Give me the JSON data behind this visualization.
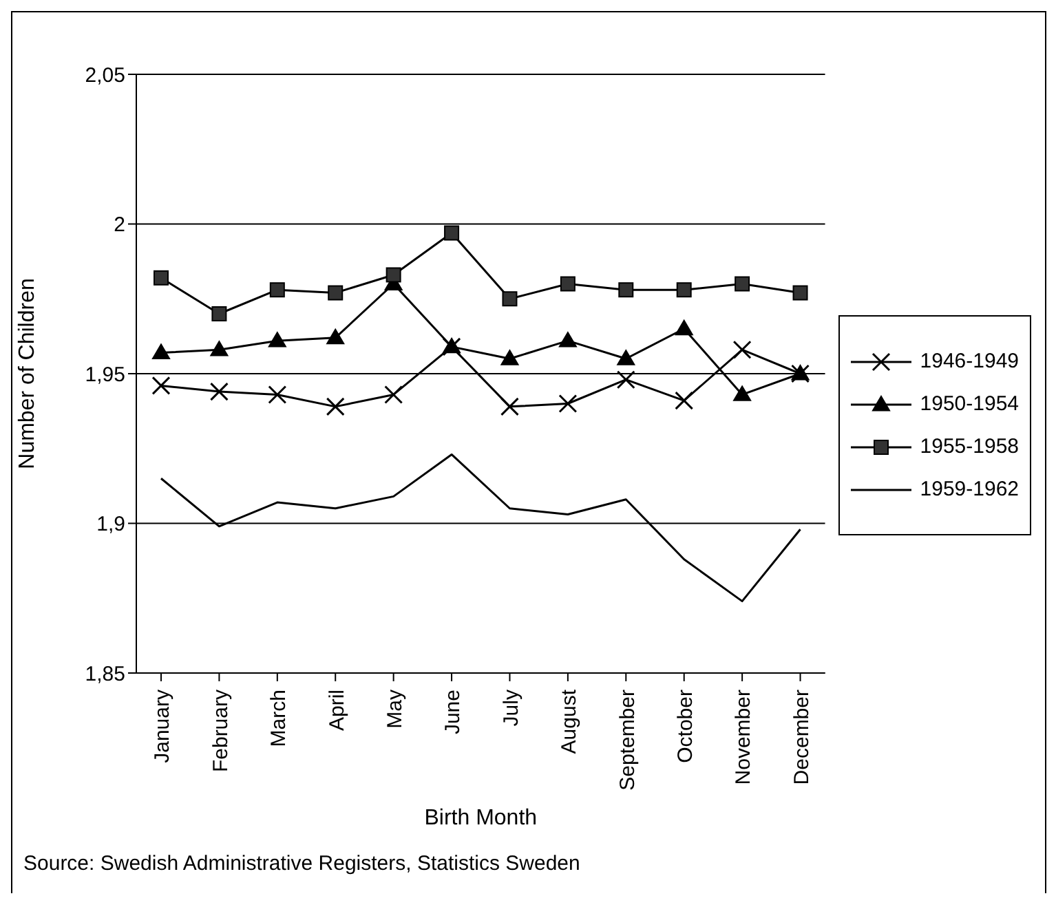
{
  "chart_data": {
    "type": "line",
    "xlabel": "Birth Month",
    "ylabel": "Number of Children",
    "categories": [
      "January",
      "February",
      "March",
      "April",
      "May",
      "June",
      "July",
      "August",
      "September",
      "October",
      "November",
      "December"
    ],
    "series": [
      {
        "name": "1946-1949",
        "color": "#000000",
        "marker": "cross",
        "values": [
          1.946,
          1.944,
          1.943,
          1.939,
          1.943,
          1.959,
          1.939,
          1.94,
          1.948,
          1.941,
          1.958,
          1.95
        ]
      },
      {
        "name": "1950-1954",
        "color": "#000000",
        "marker": "triangle",
        "values": [
          1.957,
          1.958,
          1.961,
          1.962,
          1.98,
          1.959,
          1.955,
          1.961,
          1.955,
          1.965,
          1.943,
          1.95
        ]
      },
      {
        "name": "1955-1958",
        "color": "#000000",
        "marker": "square",
        "values": [
          1.982,
          1.97,
          1.978,
          1.977,
          1.983,
          1.997,
          1.975,
          1.98,
          1.978,
          1.978,
          1.98,
          1.977
        ]
      },
      {
        "name": "1959-1962",
        "color": "#000000",
        "marker": "none",
        "values": [
          1.915,
          1.899,
          1.907,
          1.905,
          1.909,
          1.923,
          1.905,
          1.903,
          1.908,
          1.888,
          1.874,
          1.898
        ]
      }
    ],
    "ylim": [
      1.85,
      2.05
    ],
    "yticks": [
      {
        "value": 1.85,
        "label": "1,85"
      },
      {
        "value": 1.9,
        "label": "1,9"
      },
      {
        "value": 1.95,
        "label": "1,95"
      },
      {
        "value": 2,
        "label": "2"
      },
      {
        "value": 2.05,
        "label": "2,05"
      }
    ],
    "grid": "y",
    "legend": "right",
    "annotations": [
      "Source: Swedish Administrative Registers, Statistics Sweden"
    ]
  }
}
